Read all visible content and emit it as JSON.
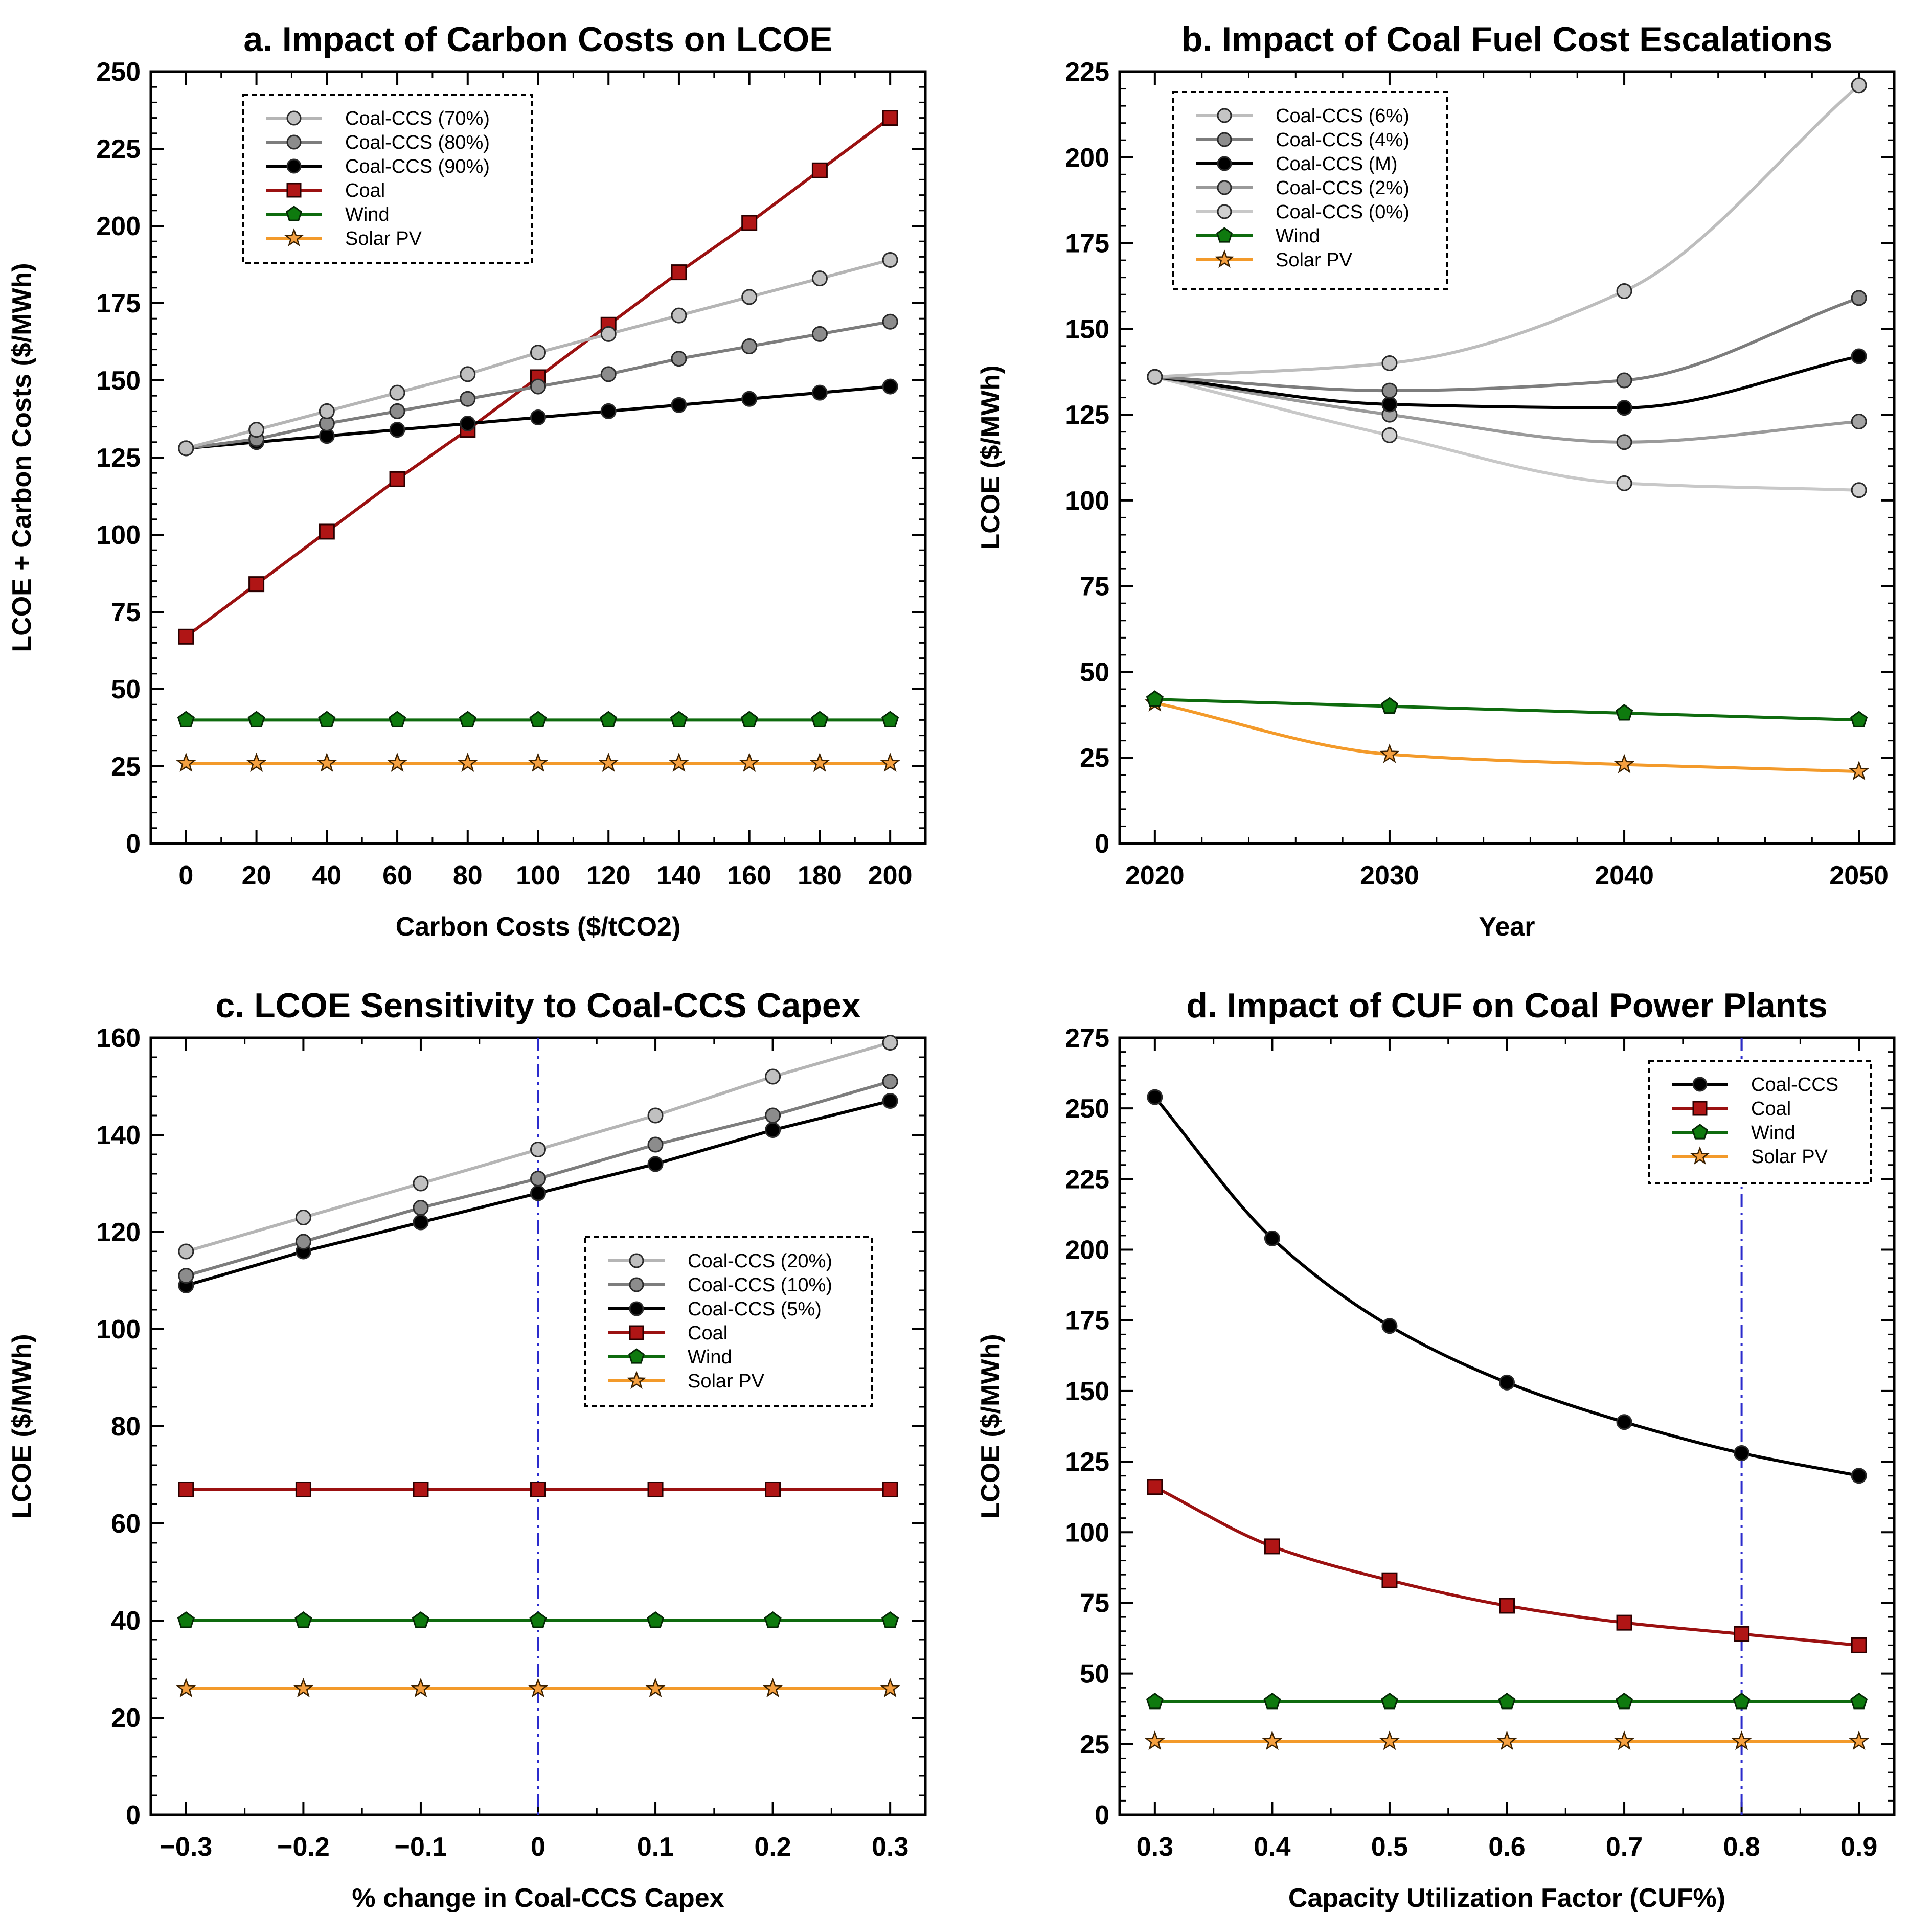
{
  "figure": {
    "panels": [
      {
        "id": "a",
        "title": "a. Impact of Carbon Costs on LCOE",
        "xlabel": "Carbon Costs ($/tCO2)",
        "ylabel": "LCOE + Carbon Costs ($/MWh)",
        "legend_position": "top-left",
        "reference_line": null,
        "curve": "linear"
      },
      {
        "id": "b",
        "title": "b. Impact of Coal Fuel Cost Escalations",
        "xlabel": "Year",
        "ylabel": "LCOE ($/MWh)",
        "legend_position": "top-left",
        "reference_line": null,
        "curve": "smooth"
      },
      {
        "id": "c",
        "title": "c. LCOE Sensitivity to Coal-CCS Capex",
        "xlabel": "% change in Coal-CCS Capex",
        "ylabel": "LCOE ($/MWh)",
        "legend_position": "center-right",
        "reference_line": 0,
        "curve": "linear"
      },
      {
        "id": "d",
        "title": "d. Impact of CUF on Coal Power Plants",
        "xlabel": "Capacity Utilization Factor (CUF%)",
        "ylabel": "LCOE ($/MWh)",
        "legend_position": "top-right",
        "reference_line": 0.8,
        "curve": "smooth"
      }
    ]
  },
  "chart_data": [
    {
      "type": "line",
      "title": "a. Impact of Carbon Costs on LCOE",
      "xlabel": "Carbon Costs ($/tCO2)",
      "ylabel": "LCOE + Carbon Costs ($/MWh)",
      "x": [
        0,
        20,
        40,
        60,
        80,
        100,
        120,
        140,
        160,
        180,
        200
      ],
      "xlim": [
        -10,
        210
      ],
      "ylim": [
        0,
        250
      ],
      "xticks": [
        0,
        20,
        40,
        60,
        80,
        100,
        120,
        140,
        160,
        180,
        200
      ],
      "xtick_labels": [
        "0",
        "20",
        "40",
        "60",
        "80",
        "100",
        "120",
        "140",
        "160",
        "180",
        "200"
      ],
      "yticks": [
        0,
        25,
        50,
        75,
        100,
        125,
        150,
        175,
        200,
        225,
        250
      ],
      "ytick_labels": [
        "0",
        "25",
        "50",
        "75",
        "100",
        "125",
        "150",
        "175",
        "200",
        "225",
        "250"
      ],
      "grid": false,
      "series": [
        {
          "name": "Coal-CCS (70%)",
          "color": "#b5b5b5",
          "marker": "circle",
          "marker_fill": "#c0c0c0",
          "values": [
            128,
            134,
            140,
            146,
            152,
            159,
            165,
            171,
            177,
            183,
            189
          ]
        },
        {
          "name": "Coal-CCS (80%)",
          "color": "#7d7d7d",
          "marker": "circle",
          "marker_fill": "#8c8c8c",
          "values": [
            128,
            131,
            136,
            140,
            144,
            148,
            152,
            157,
            161,
            165,
            169
          ]
        },
        {
          "name": "Coal-CCS (90%)",
          "color": "#000000",
          "marker": "circle",
          "marker_fill": "#000000",
          "values": [
            128,
            130,
            132,
            134,
            136,
            138,
            140,
            142,
            144,
            146,
            148
          ]
        },
        {
          "name": "Coal",
          "color": "#9b1111",
          "marker": "square",
          "marker_fill": "#b01515",
          "values": [
            67,
            84,
            101,
            118,
            134,
            151,
            168,
            185,
            201,
            218,
            235
          ]
        },
        {
          "name": "Wind",
          "color": "#0e6b0e",
          "marker": "pentagon",
          "marker_fill": "#0e7a0e",
          "values": [
            40,
            40,
            40,
            40,
            40,
            40,
            40,
            40,
            40,
            40,
            40
          ]
        },
        {
          "name": "Solar PV",
          "color": "#f39a2a",
          "marker": "star",
          "marker_fill": "#f5a040",
          "values": [
            26,
            26,
            26,
            26,
            26,
            26,
            26,
            26,
            26,
            26,
            26
          ]
        }
      ]
    },
    {
      "type": "line",
      "title": "b. Impact of Coal Fuel Cost Escalations",
      "xlabel": "Year",
      "ylabel": "LCOE ($/MWh)",
      "x": [
        2020,
        2030,
        2040,
        2050
      ],
      "xlim": [
        2018.5,
        2051.5
      ],
      "ylim": [
        0,
        225
      ],
      "xticks": [
        2020,
        2030,
        2040,
        2050
      ],
      "xtick_labels": [
        "2020",
        "2030",
        "2040",
        "2050"
      ],
      "yticks": [
        0,
        25,
        50,
        75,
        100,
        125,
        150,
        175,
        200,
        225
      ],
      "ytick_labels": [
        "0",
        "25",
        "50",
        "75",
        "100",
        "125",
        "150",
        "175",
        "200",
        "225"
      ],
      "grid": false,
      "series": [
        {
          "name": "Coal-CCS (6%)",
          "color": "#bdbdbd",
          "marker": "circle",
          "marker_fill": "#c4c4c4",
          "values": [
            136,
            140,
            161,
            221
          ]
        },
        {
          "name": "Coal-CCS (4%)",
          "color": "#7d7d7d",
          "marker": "circle",
          "marker_fill": "#8c8c8c",
          "values": [
            136,
            132,
            135,
            159
          ]
        },
        {
          "name": "Coal-CCS (M)",
          "color": "#000000",
          "marker": "circle",
          "marker_fill": "#000000",
          "values": [
            136,
            128,
            127,
            142
          ]
        },
        {
          "name": "Coal-CCS (2%)",
          "color": "#9a9a9a",
          "marker": "circle",
          "marker_fill": "#a3a3a3",
          "values": [
            136,
            125,
            117,
            123
          ]
        },
        {
          "name": "Coal-CCS (0%)",
          "color": "#c8c8c8",
          "marker": "circle",
          "marker_fill": "#cfcfcf",
          "values": [
            136,
            119,
            105,
            103
          ]
        },
        {
          "name": "Wind",
          "color": "#0e6b0e",
          "marker": "pentagon",
          "marker_fill": "#0e7a0e",
          "values": [
            42,
            40,
            38,
            36
          ]
        },
        {
          "name": "Solar PV",
          "color": "#f39a2a",
          "marker": "star",
          "marker_fill": "#f5a040",
          "values": [
            41,
            26,
            23,
            21
          ]
        }
      ]
    },
    {
      "type": "line",
      "title": "c. LCOE Sensitivity to Coal-CCS Capex",
      "xlabel": "% change in Coal-CCS Capex",
      "ylabel": "LCOE ($/MWh)",
      "x": [
        -0.3,
        -0.2,
        -0.1,
        0,
        0.1,
        0.2,
        0.3
      ],
      "xlim": [
        -0.33,
        0.33
      ],
      "ylim": [
        0,
        160
      ],
      "xticks": [
        -0.3,
        -0.2,
        -0.1,
        0,
        0.1,
        0.2,
        0.3
      ],
      "xtick_labels": [
        "−0.3",
        "−0.2",
        "−0.1",
        "0",
        "0.1",
        "0.2",
        "0.3"
      ],
      "yticks": [
        0,
        20,
        40,
        60,
        80,
        100,
        120,
        140,
        160
      ],
      "ytick_labels": [
        "0",
        "20",
        "40",
        "60",
        "80",
        "100",
        "120",
        "140",
        "160"
      ],
      "grid": false,
      "series": [
        {
          "name": "Coal-CCS (20%)",
          "color": "#b5b5b5",
          "marker": "circle",
          "marker_fill": "#c0c0c0",
          "values": [
            116,
            123,
            130,
            137,
            144,
            152,
            159
          ]
        },
        {
          "name": "Coal-CCS (10%)",
          "color": "#7d7d7d",
          "marker": "circle",
          "marker_fill": "#8c8c8c",
          "values": [
            111,
            118,
            125,
            131,
            138,
            144,
            151
          ]
        },
        {
          "name": "Coal-CCS (5%)",
          "color": "#000000",
          "marker": "circle",
          "marker_fill": "#000000",
          "values": [
            109,
            116,
            122,
            128,
            134,
            141,
            147
          ]
        },
        {
          "name": "Coal",
          "color": "#9b1111",
          "marker": "square",
          "marker_fill": "#b01515",
          "values": [
            67,
            67,
            67,
            67,
            67,
            67,
            67
          ]
        },
        {
          "name": "Wind",
          "color": "#0e6b0e",
          "marker": "pentagon",
          "marker_fill": "#0e7a0e",
          "values": [
            40,
            40,
            40,
            40,
            40,
            40,
            40
          ]
        },
        {
          "name": "Solar PV",
          "color": "#f39a2a",
          "marker": "star",
          "marker_fill": "#f5a040",
          "values": [
            26,
            26,
            26,
            26,
            26,
            26,
            26
          ]
        }
      ]
    },
    {
      "type": "line",
      "title": "d. Impact of CUF on Coal Power Plants",
      "xlabel": "Capacity Utilization Factor (CUF%)",
      "ylabel": "LCOE ($/MWh)",
      "x": [
        0.3,
        0.4,
        0.5,
        0.6,
        0.7,
        0.8,
        0.9
      ],
      "xlim": [
        0.27,
        0.93
      ],
      "ylim": [
        0,
        275
      ],
      "xticks": [
        0.3,
        0.4,
        0.5,
        0.6,
        0.7,
        0.8,
        0.9
      ],
      "xtick_labels": [
        "0.3",
        "0.4",
        "0.5",
        "0.6",
        "0.7",
        "0.8",
        "0.9"
      ],
      "yticks": [
        0,
        25,
        50,
        75,
        100,
        125,
        150,
        175,
        200,
        225,
        250,
        275
      ],
      "ytick_labels": [
        "0",
        "25",
        "50",
        "75",
        "100",
        "125",
        "150",
        "175",
        "200",
        "225",
        "250",
        "275"
      ],
      "grid": false,
      "series": [
        {
          "name": "Coal-CCS",
          "color": "#000000",
          "marker": "circle",
          "marker_fill": "#000000",
          "values": [
            254,
            204,
            173,
            153,
            139,
            128,
            120
          ]
        },
        {
          "name": "Coal",
          "color": "#9b1111",
          "marker": "square",
          "marker_fill": "#b01515",
          "values": [
            116,
            95,
            83,
            74,
            68,
            64,
            60
          ]
        },
        {
          "name": "Wind",
          "color": "#0e6b0e",
          "marker": "pentagon",
          "marker_fill": "#0e7a0e",
          "values": [
            40,
            40,
            40,
            40,
            40,
            40,
            40
          ]
        },
        {
          "name": "Solar PV",
          "color": "#f39a2a",
          "marker": "star",
          "marker_fill": "#f5a040",
          "values": [
            26,
            26,
            26,
            26,
            26,
            26,
            26
          ]
        }
      ]
    }
  ]
}
